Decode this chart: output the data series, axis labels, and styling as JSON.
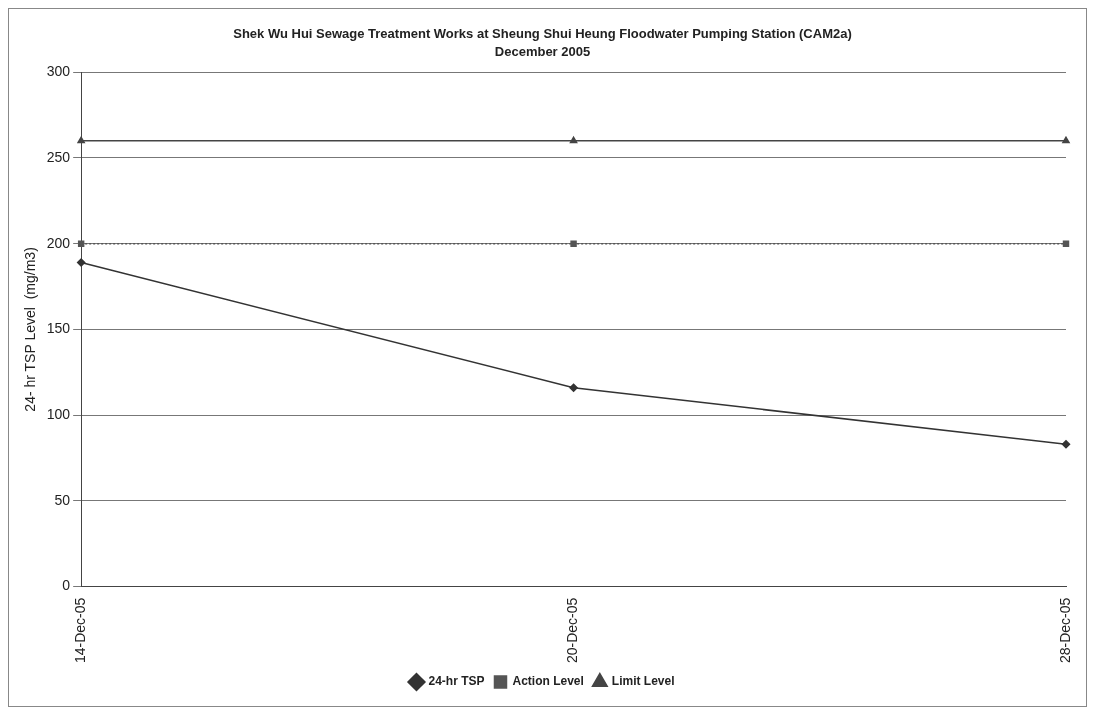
{
  "chart_data": {
    "type": "line",
    "title": "Shek Wu Hui Sewage Treatment Works at Sheung Shui Heung Floodwater Pumping Station (CAM2a)",
    "subtitle": "December 2005",
    "ylabel": "24- hr TSP Level  (mg/m3)",
    "categories": [
      "14-Dec-05",
      "20-Dec-05",
      "28-Dec-05"
    ],
    "series": [
      {
        "name": "24-hr TSP",
        "color": "#333333",
        "values": [
          189,
          116,
          83
        ],
        "marker": "diamond",
        "line_style": "solid"
      },
      {
        "name": "Action Level",
        "color": "#555555",
        "values": [
          200,
          200,
          200
        ],
        "marker": "square",
        "line_style": "dotted"
      },
      {
        "name": "Limit Level",
        "color": "#444444",
        "values": [
          260,
          260,
          260
        ],
        "marker": "triangle",
        "line_style": "solid"
      }
    ],
    "ylim": [
      0,
      300
    ],
    "yticks": [
      0,
      50,
      100,
      150,
      200,
      250,
      300
    ],
    "grid": "y",
    "legend": "bottom"
  }
}
